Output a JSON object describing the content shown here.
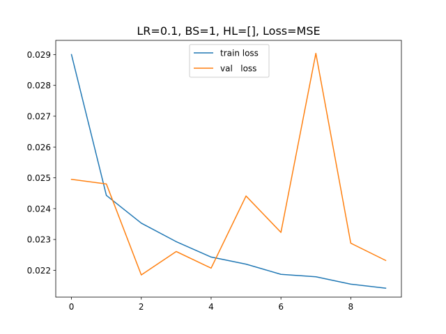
{
  "chart_data": {
    "type": "line",
    "title": "LR=0.1, BS=1, HL=[], Loss=MSE",
    "xlabel": "",
    "ylabel": "",
    "x": [
      0,
      1,
      2,
      3,
      4,
      5,
      6,
      7,
      8,
      9
    ],
    "xlim": [
      -0.45,
      9.45
    ],
    "ylim": [
      0.02113,
      0.02946
    ],
    "xticks": [
      0,
      2,
      4,
      6,
      8
    ],
    "xtick_labels": [
      "0",
      "2",
      "4",
      "6",
      "8"
    ],
    "yticks": [
      0.022,
      0.023,
      0.024,
      0.025,
      0.026,
      0.027,
      0.028,
      0.029
    ],
    "ytick_labels": [
      "0.022",
      "0.023",
      "0.024",
      "0.025",
      "0.026",
      "0.027",
      "0.028",
      "0.029"
    ],
    "grid": false,
    "legend_position": "upper center",
    "series": [
      {
        "name": "train loss",
        "color": "#1f77b4",
        "values": [
          0.029,
          0.02443,
          0.02353,
          0.02293,
          0.02243,
          0.0222,
          0.02187,
          0.02179,
          0.02155,
          0.02142
        ]
      },
      {
        "name": "val   loss",
        "color": "#ff7f0e",
        "values": [
          0.02495,
          0.0248,
          0.02185,
          0.02261,
          0.02207,
          0.02441,
          0.02323,
          0.02904,
          0.02288,
          0.02232
        ]
      }
    ]
  }
}
